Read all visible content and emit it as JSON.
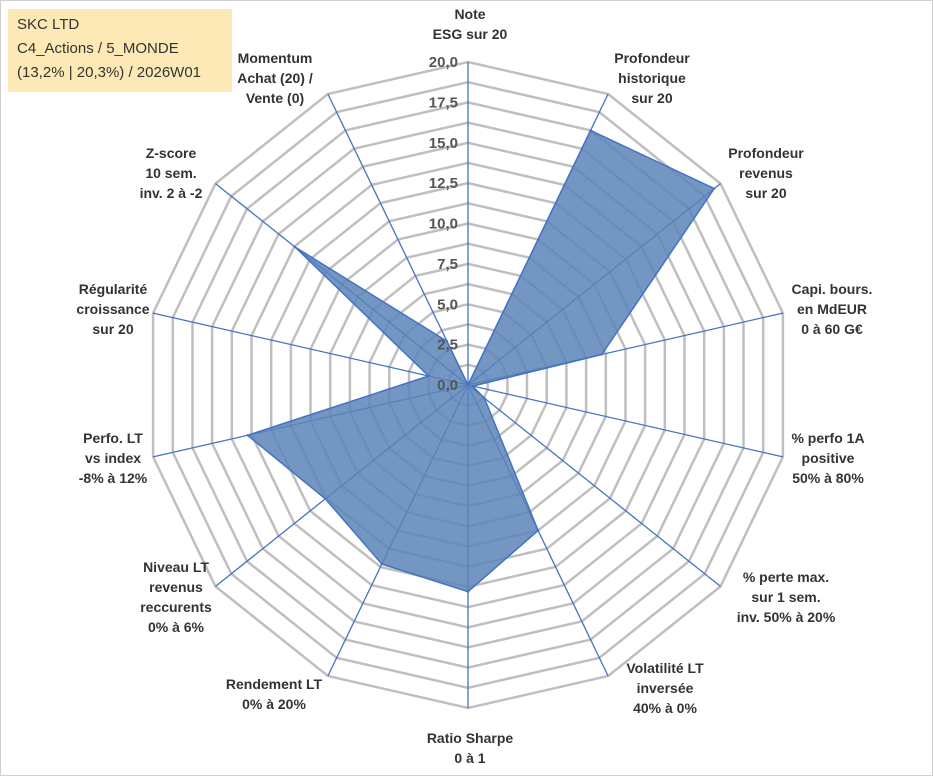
{
  "info": {
    "company": "SKC LTD",
    "category": "C4_Actions / 5_MONDE",
    "details": "(13,2% | 20,3%) / 2026W01"
  },
  "colors": {
    "grid": "#bfbfbf",
    "spoke": "#4472c4",
    "fill": "#5b84b8",
    "stroke": "#4472c4",
    "info_bg": "#fde9b5"
  },
  "chart_data": {
    "type": "radar",
    "title": "",
    "rmin": 0,
    "rmax": 20,
    "tick_step": 2.5,
    "grid_rings": 16,
    "tick_labels": [
      "0,0",
      "2,5",
      "5,0",
      "7,5",
      "10,0",
      "12,5",
      "15,0",
      "17,5",
      "20,0"
    ],
    "axes": [
      {
        "label": [
          "Note",
          "ESG sur 20"
        ],
        "value": 0
      },
      {
        "label": [
          "Profondeur",
          "historique",
          "sur 20"
        ],
        "value": 17.5
      },
      {
        "label": [
          "Profondeur",
          "revenus",
          "sur 20"
        ],
        "value": 19.5
      },
      {
        "label": [
          "Capi. bours.",
          "en MdEUR",
          "0 à 60 G€"
        ],
        "value": 8.5
      },
      {
        "label": [
          "% perfo 1A",
          "positive",
          "50% à 80%"
        ],
        "value": 0.3
      },
      {
        "label": [
          "% perte max.",
          "sur 1 sem.",
          "inv. 50% à 20%"
        ],
        "value": 1.3
      },
      {
        "label": [
          "Volatilité LT",
          "inversée",
          "40% à 0%"
        ],
        "value": 10.0
      },
      {
        "label": [
          "Ratio Sharpe",
          "0 à 1"
        ],
        "value": 12.8
      },
      {
        "label": [
          "Rendement LT",
          "0% à 20%"
        ],
        "value": 12.3
      },
      {
        "label": [
          "Niveau LT",
          "revenus",
          "reccurents",
          "0% à 6%"
        ],
        "value": 11.3
      },
      {
        "label": [
          "Perfo. LT",
          "vs index",
          "-8% à 12%"
        ],
        "value": 14.0
      },
      {
        "label": [
          "Régularité",
          "croissance",
          "sur 20"
        ],
        "value": 2.5
      },
      {
        "label": [
          "Z-score",
          "10 sem.",
          "inv. 2 à -2"
        ],
        "value": 13.7
      },
      {
        "label": [
          "Momentum",
          "Achat (20) /",
          "Vente (0)"
        ],
        "value": 3.0
      }
    ]
  }
}
